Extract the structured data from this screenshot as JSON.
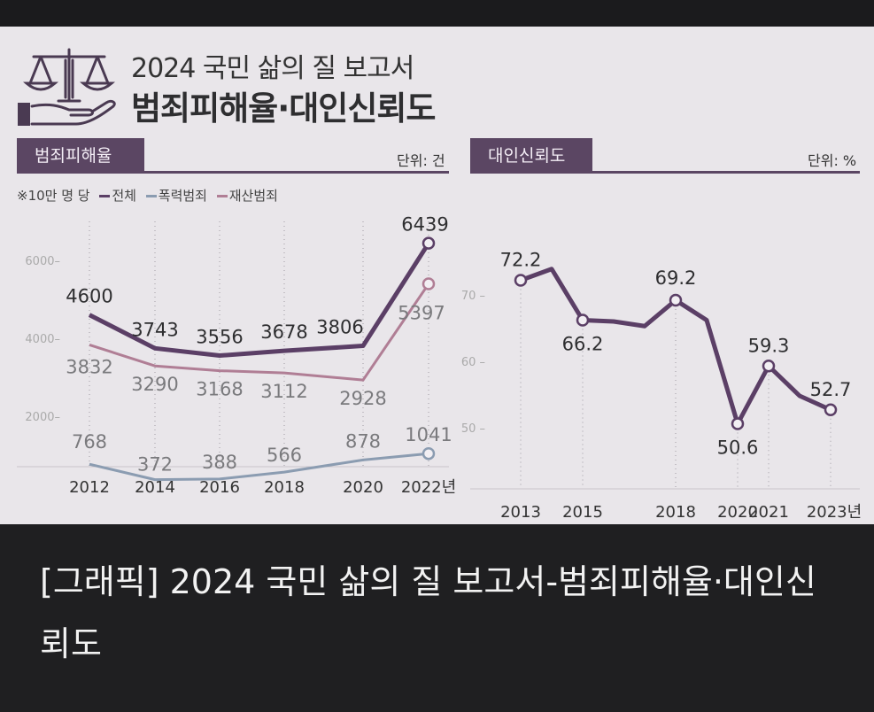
{
  "header": {
    "title_sub": "2024 국민 삶의 질 보고서",
    "title_main": "범죄피해율·대인신뢰도",
    "logo_icon": "scales-hand-icon"
  },
  "left_panel": {
    "tab_label": "범죄피해율",
    "unit": "단위: 건",
    "legend_note": "※10만 명 당",
    "legend": [
      "전체",
      "폭력범죄",
      "재산범죄"
    ]
  },
  "right_panel": {
    "tab_label": "대인신뢰도",
    "unit": "단위: %"
  },
  "caption": "[그래픽] 2024 국민 삶의 질 보고서-범죄피해율·대인신뢰도",
  "colors": {
    "total": "#5b3f66",
    "violent": "#8b9cb1",
    "property": "#b07e95",
    "tab": "#5b4663",
    "background": "#e9e6ea"
  },
  "chart_data": [
    {
      "type": "line",
      "title": "범죄피해율",
      "unit": "단위: 건",
      "x": [
        2012,
        2014,
        2016,
        2018,
        2020,
        2022
      ],
      "x_tick_labels": [
        "2012",
        "2014",
        "2016",
        "2018",
        "2020",
        "2022년"
      ],
      "ylim": [
        0,
        7000
      ],
      "y_ticks": [
        2000,
        4000,
        6000
      ],
      "series": [
        {
          "name": "전체",
          "values": [
            4600,
            3743,
            3556,
            3678,
            3806,
            6439
          ]
        },
        {
          "name": "폭력범죄",
          "values": [
            768,
            372,
            388,
            566,
            878,
            1041
          ]
        },
        {
          "name": "재산범죄",
          "values": [
            3832,
            3290,
            3168,
            3112,
            2928,
            5397
          ]
        }
      ]
    },
    {
      "type": "line",
      "title": "대인신뢰도",
      "unit": "단위: %",
      "x": [
        2013,
        2014,
        2015,
        2016,
        2017,
        2018,
        2019,
        2020,
        2021,
        2022,
        2023
      ],
      "x_tick_labels": [
        "2013",
        "2015",
        "2018",
        "2020",
        "2021",
        "2023년"
      ],
      "x_tick_values": [
        2013,
        2015,
        2018,
        2020,
        2021,
        2023
      ],
      "labeled_points": [
        {
          "x": 2013,
          "label": "72.2"
        },
        {
          "x": 2015,
          "label": "66.2"
        },
        {
          "x": 2018,
          "label": "69.2"
        },
        {
          "x": 2020,
          "label": "50.6"
        },
        {
          "x": 2021,
          "label": "59.3"
        },
        {
          "x": 2023,
          "label": "52.7"
        }
      ],
      "ylim": [
        40,
        80
      ],
      "y_ticks": [
        50,
        60,
        70
      ],
      "series": [
        {
          "name": "대인신뢰도",
          "values": [
            72.2,
            73.9,
            66.2,
            66.0,
            65.3,
            69.2,
            66.2,
            50.6,
            59.3,
            54.8,
            52.7
          ]
        }
      ]
    }
  ]
}
